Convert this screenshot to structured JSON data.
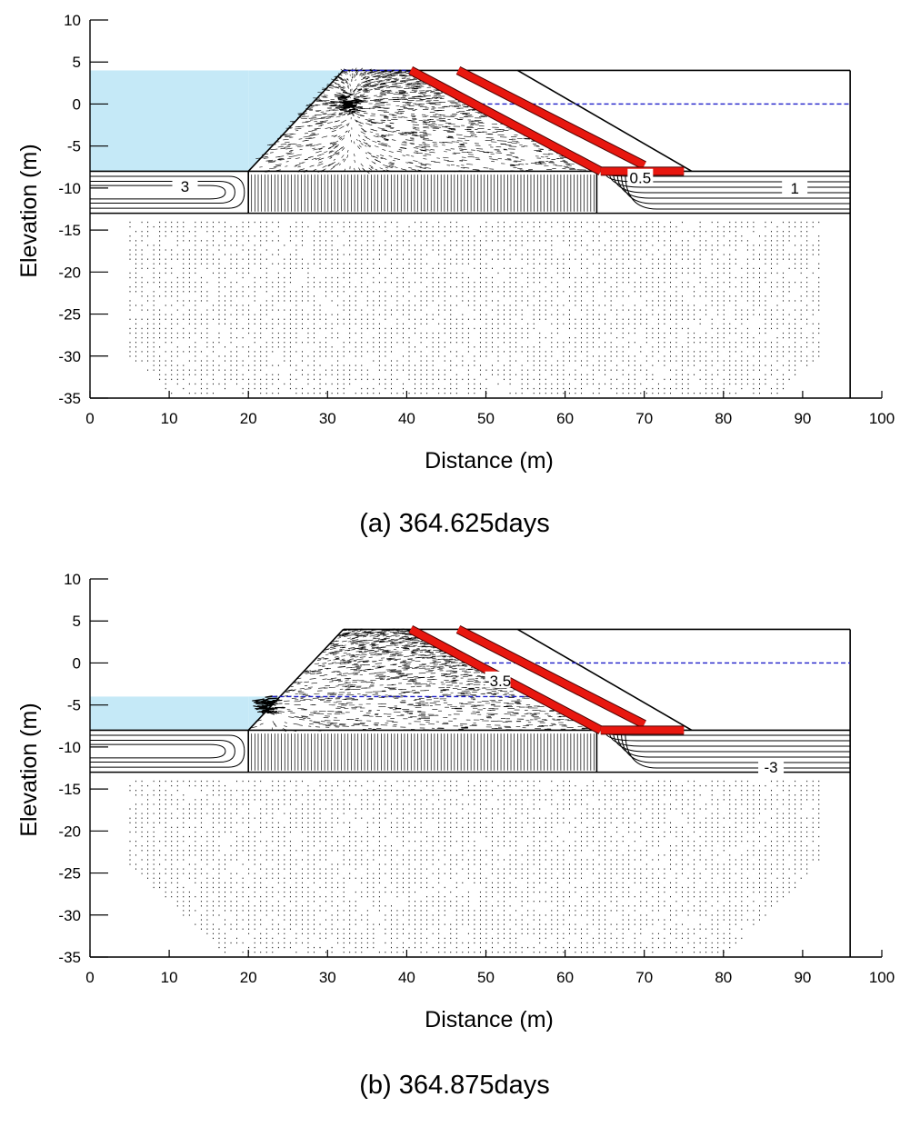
{
  "colors": {
    "water": "#c5e9f7",
    "drain": "#e8170f",
    "drain_edge": "#4a0000",
    "phreatic": "#1a1ac8",
    "outline": "#000000",
    "vector": "#000000"
  },
  "chart_data": [
    {
      "type": "diagram",
      "xlabel": "Distance (m)",
      "ylabel": "Elevation (m)",
      "xlim": [
        0,
        100
      ],
      "ylim": [
        -35,
        10
      ],
      "xticks": [
        0,
        10,
        20,
        30,
        40,
        50,
        60,
        70,
        80,
        90,
        100
      ],
      "yticks": [
        10,
        5,
        0,
        -5,
        -10,
        -15,
        -20,
        -25,
        -30,
        -35
      ],
      "caption": "(a)  364.625days",
      "reservoir_level": 4,
      "downstream_level": 0,
      "contour_labels": [
        {
          "text": "3",
          "x": 12,
          "y": -9.9
        },
        {
          "text": "0.5",
          "x": 69.5,
          "y": -8.9
        },
        {
          "text": "1",
          "x": 89,
          "y": -10.1
        }
      ]
    },
    {
      "type": "diagram",
      "xlabel": "Distance (m)",
      "ylabel": "Elevation (m)",
      "xlim": [
        0,
        100
      ],
      "ylim": [
        -35,
        10
      ],
      "xticks": [
        0,
        10,
        20,
        30,
        40,
        50,
        60,
        70,
        80,
        90,
        100
      ],
      "yticks": [
        10,
        5,
        0,
        -5,
        -10,
        -15,
        -20,
        -25,
        -30,
        -35
      ],
      "caption": "(b)  364.875days",
      "reservoir_level": -4,
      "downstream_level": 0,
      "contour_labels": [
        {
          "text": "-3.5",
          "x": 51.5,
          "y": -2.2
        },
        {
          "text": "-3",
          "x": 86,
          "y": -12.5
        }
      ]
    }
  ]
}
